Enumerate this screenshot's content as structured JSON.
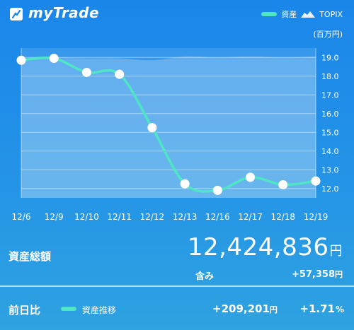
{
  "app": {
    "name": "myTrade"
  },
  "legend": {
    "assets_label": "資産",
    "topix_label": "TOPIX",
    "unit": "(百万円)"
  },
  "colors": {
    "asset_line": "#4ee6c4",
    "background": "#1a86ea",
    "divider": "#b9e2ff"
  },
  "chart_data": {
    "type": "line",
    "categories": [
      "12/6",
      "12/9",
      "12/10",
      "12/11",
      "12/12",
      "12/13",
      "12/16",
      "12/17",
      "12/18",
      "12/19"
    ],
    "y_ticks": [
      "19.0",
      "18.0",
      "17.0",
      "16.0",
      "15.0",
      "14.0",
      "13.0",
      "12.0"
    ],
    "ylim": [
      11.5,
      19.5
    ],
    "series": [
      {
        "name": "資産",
        "values": [
          18.85,
          18.95,
          18.2,
          18.1,
          15.25,
          12.25,
          11.9,
          12.6,
          12.2,
          12.4
        ]
      },
      {
        "name": "TOPIX",
        "values": [
          18.95,
          19.0,
          18.95,
          18.95,
          18.85,
          19.05,
          19.0,
          19.05,
          19.0,
          19.05
        ]
      }
    ]
  },
  "summary": {
    "total_label": "資産総額",
    "total_value": "12,424,836",
    "yen": "円",
    "include_label": "含み",
    "include_value": "+57,358",
    "prev_label": "前日比",
    "trend_label": "資産推移",
    "prev_value": "+209,201",
    "prev_pct": "+1.71",
    "pct_sign": "%"
  }
}
